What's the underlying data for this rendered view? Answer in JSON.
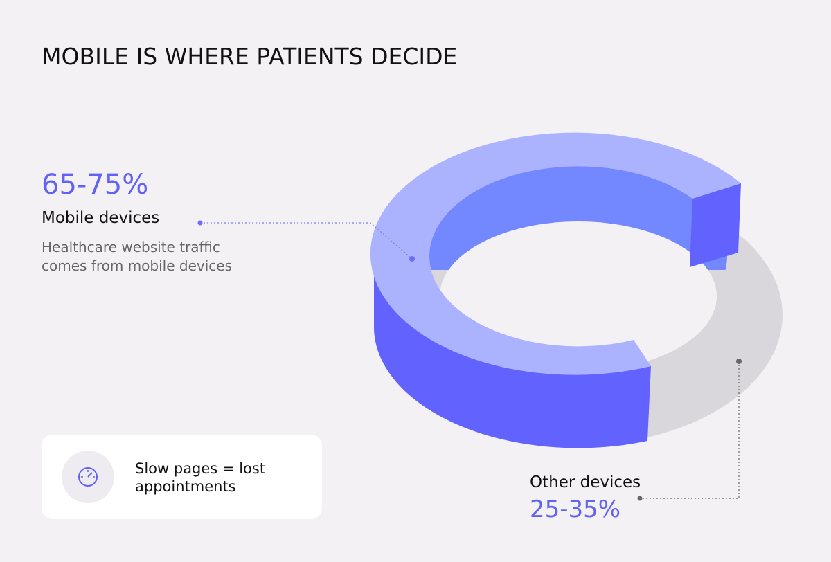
{
  "header": {
    "title": "MOBILE IS WHERE PATIENTS DECIDE"
  },
  "mobile": {
    "share": "65-75%",
    "label": "Mobile devices",
    "description_lines": [
      "Healthcare website traffic",
      "comes from mobile devices"
    ]
  },
  "other": {
    "label": "Other devices",
    "share": "25-35%"
  },
  "callout": {
    "lines": [
      "Slow pages = lost",
      "appointments"
    ]
  }
}
